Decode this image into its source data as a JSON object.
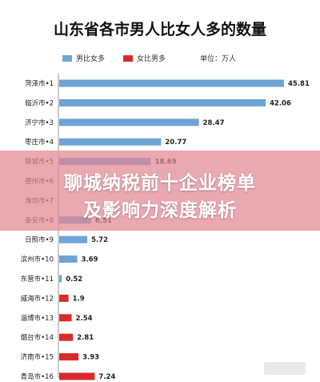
{
  "chart_data": {
    "type": "bar",
    "orientation": "horizontal",
    "title": "山东省各市男人比女人多的数量",
    "unit_label": "单位：万人",
    "legend": [
      {
        "label": "男比女多",
        "color": "#6ea3d6"
      },
      {
        "label": "女比男多",
        "color": "#d92b2b"
      }
    ],
    "categories": [
      "菏泽市•1",
      "临沂市•2",
      "济宁市•3",
      "枣庄市•4",
      "聊城市•5",
      "德州市•6",
      "潍坊市•7",
      "泰安市•8",
      "日照市•9",
      "滨州市•10",
      "东营市•11",
      "威海市•12",
      "淄博市•13",
      "烟台市•14",
      "济南市•15",
      "青岛市•16"
    ],
    "values": [
      45.81,
      42.06,
      28.47,
      20.77,
      18.69,
      null,
      null,
      6.51,
      5.72,
      3.69,
      0.52,
      1.9,
      2.54,
      2.81,
      3.93,
      7.24
    ],
    "value_labels": [
      "45.81",
      "42.06",
      "28.47",
      "20.77",
      "18.69",
      "",
      "",
      "6.51",
      "5.72",
      "3.69",
      "0.52",
      "1.9",
      "2.54",
      "2.81",
      "3.93",
      "7.24"
    ],
    "group": [
      "male",
      "male",
      "male",
      "male",
      "male",
      "male",
      "male",
      "male",
      "male",
      "male",
      "male",
      "female",
      "female",
      "female",
      "female",
      "female"
    ],
    "xlim": [
      0,
      50
    ],
    "grid": false,
    "legend_position": "top"
  },
  "overlay": {
    "line1": "聊城纳税前十企业榜单",
    "line2": "及影响力深度解析"
  },
  "colors": {
    "male": "#6ea3d6",
    "female": "#d92b2b",
    "overlay": "#e28791"
  }
}
